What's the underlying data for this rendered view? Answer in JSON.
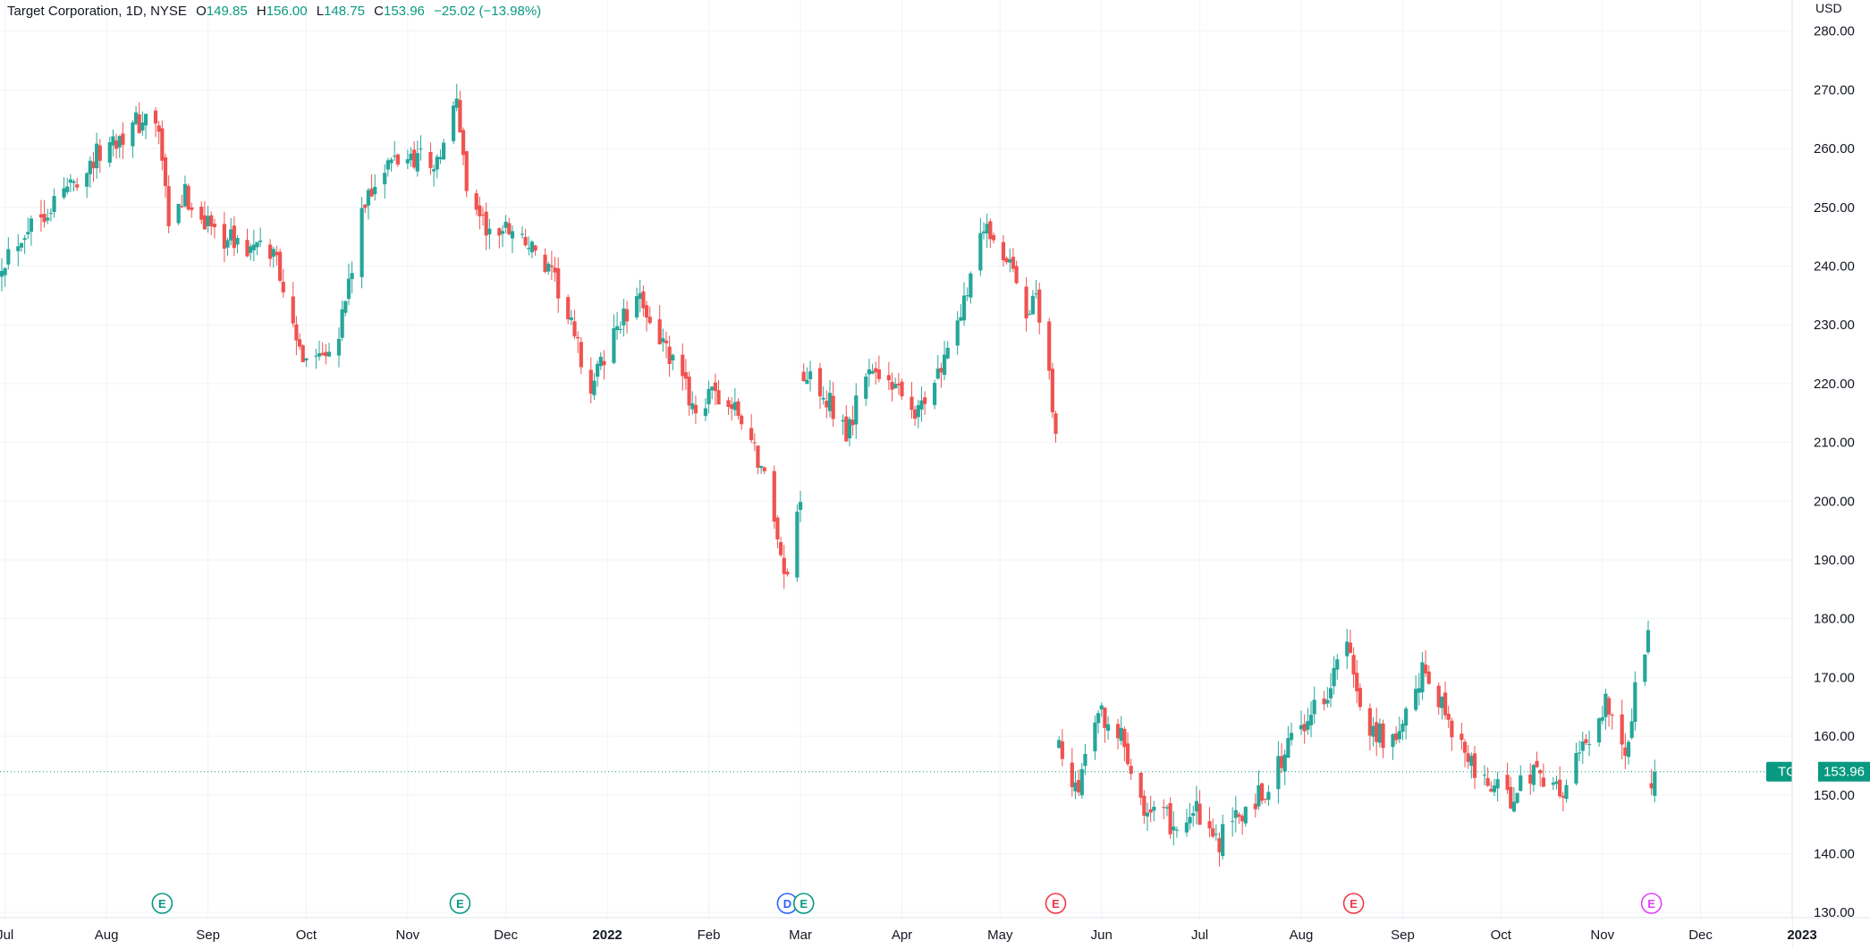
{
  "header": {
    "symbol": "Target Corporation, 1D, NYSE",
    "open_label": "O",
    "open": "149.85",
    "high_label": "H",
    "high": "156.00",
    "low_label": "L",
    "low": "148.75",
    "close_label": "C",
    "close": "153.96",
    "change": "−25.02 (−13.98%)"
  },
  "colors": {
    "up": "#26a69a",
    "down": "#ef5350",
    "grid": "#f0f3fa",
    "text": "#131722",
    "last_price": "#089981"
  },
  "chart_data": {
    "type": "candlestick",
    "symbol": "TGT",
    "interval": "1D",
    "currency_label": "USD",
    "last_price": 153.96,
    "last_price_label": "153.96",
    "ylim": [
      125,
      283
    ],
    "y_ticks": [
      "130.00",
      "140.00",
      "150.00",
      "160.00",
      "170.00",
      "180.00",
      "190.00",
      "200.00",
      "210.00",
      "220.00",
      "230.00",
      "240.00",
      "250.00",
      "260.00",
      "270.00",
      "280.00"
    ],
    "x_ticks": [
      {
        "date": "2021-07-01",
        "label": "Jul"
      },
      {
        "date": "2021-08-01",
        "label": "Aug"
      },
      {
        "date": "2021-09-01",
        "label": "Sep"
      },
      {
        "date": "2021-10-01",
        "label": "Oct"
      },
      {
        "date": "2021-11-01",
        "label": "Nov"
      },
      {
        "date": "2021-12-01",
        "label": "Dec"
      },
      {
        "date": "2022-01-01",
        "label": "2022"
      },
      {
        "date": "2022-02-01",
        "label": "Feb"
      },
      {
        "date": "2022-03-01",
        "label": "Mar"
      },
      {
        "date": "2022-04-01",
        "label": "Apr"
      },
      {
        "date": "2022-05-01",
        "label": "May"
      },
      {
        "date": "2022-06-01",
        "label": "Jun"
      },
      {
        "date": "2022-07-01",
        "label": "Jul"
      },
      {
        "date": "2022-08-01",
        "label": "Aug"
      },
      {
        "date": "2022-09-01",
        "label": "Sep"
      },
      {
        "date": "2022-10-01",
        "label": "Oct"
      },
      {
        "date": "2022-11-01",
        "label": "Nov"
      },
      {
        "date": "2022-12-01",
        "label": "Dec"
      },
      {
        "date": "2023-01-01",
        "label": "2023"
      }
    ],
    "events": [
      {
        "date": "2021-08-18",
        "label": "E",
        "color": "#089981"
      },
      {
        "date": "2021-11-17",
        "label": "E",
        "color": "#089981"
      },
      {
        "date": "2022-02-25",
        "label": "D",
        "color": "#2962ff"
      },
      {
        "date": "2022-03-02",
        "label": "E",
        "color": "#089981"
      },
      {
        "date": "2022-05-18",
        "label": "E",
        "color": "#f23645"
      },
      {
        "date": "2022-08-17",
        "label": "E",
        "color": "#f23645"
      },
      {
        "date": "2022-11-16",
        "label": "E",
        "color": "#e040fb"
      }
    ],
    "path": [
      [
        "2021-06-30",
        241
      ],
      [
        "2021-07-08",
        247
      ],
      [
        "2021-07-16",
        251
      ],
      [
        "2021-07-26",
        257
      ],
      [
        "2021-08-04",
        262
      ],
      [
        "2021-08-13",
        265
      ],
      [
        "2021-08-17",
        263
      ],
      [
        "2021-08-20",
        246
      ],
      [
        "2021-08-25",
        252
      ],
      [
        "2021-09-03",
        246
      ],
      [
        "2021-09-13",
        243
      ],
      [
        "2021-09-22",
        242
      ],
      [
        "2021-09-28",
        226
      ],
      [
        "2021-10-04",
        225
      ],
      [
        "2021-10-11",
        229
      ],
      [
        "2021-10-20",
        253
      ],
      [
        "2021-10-28",
        258
      ],
      [
        "2021-11-05",
        259
      ],
      [
        "2021-11-10",
        257
      ],
      [
        "2021-11-16",
        268
      ],
      [
        "2021-11-19",
        254
      ],
      [
        "2021-11-26",
        245
      ],
      [
        "2021-12-03",
        247
      ],
      [
        "2021-12-10",
        242
      ],
      [
        "2021-12-17",
        236
      ],
      [
        "2021-12-27",
        219
      ],
      [
        "2022-01-04",
        230
      ],
      [
        "2022-01-12",
        234
      ],
      [
        "2022-01-20",
        224
      ],
      [
        "2022-01-28",
        216
      ],
      [
        "2022-02-04",
        218
      ],
      [
        "2022-02-11",
        214
      ],
      [
        "2022-02-17",
        206
      ],
      [
        "2022-02-22",
        195
      ],
      [
        "2022-02-24",
        186
      ],
      [
        "2022-03-01",
        200
      ],
      [
        "2022-03-02",
        222
      ],
      [
        "2022-03-09",
        218
      ],
      [
        "2022-03-15",
        212
      ],
      [
        "2022-03-22",
        223
      ],
      [
        "2022-03-30",
        220
      ],
      [
        "2022-04-06",
        215
      ],
      [
        "2022-04-13",
        223
      ],
      [
        "2022-04-21",
        237
      ],
      [
        "2022-04-27",
        248
      ],
      [
        "2022-05-03",
        241
      ],
      [
        "2022-05-09",
        232
      ],
      [
        "2022-05-12",
        236
      ],
      [
        "2022-05-17",
        216
      ],
      [
        "2022-05-18",
        211
      ],
      [
        "2022-05-19",
        158
      ],
      [
        "2022-05-24",
        150
      ],
      [
        "2022-05-31",
        165
      ],
      [
        "2022-06-08",
        159
      ],
      [
        "2022-06-15",
        147
      ],
      [
        "2022-06-24",
        145
      ],
      [
        "2022-06-30",
        147
      ],
      [
        "2022-07-05",
        141
      ],
      [
        "2022-07-14",
        147
      ],
      [
        "2022-07-22",
        152
      ],
      [
        "2022-08-01",
        162
      ],
      [
        "2022-08-08",
        167
      ],
      [
        "2022-08-15",
        176
      ],
      [
        "2022-08-17",
        169
      ],
      [
        "2022-08-22",
        162
      ],
      [
        "2022-08-30",
        158
      ],
      [
        "2022-09-08",
        172
      ],
      [
        "2022-09-15",
        163
      ],
      [
        "2022-09-23",
        154
      ],
      [
        "2022-10-03",
        149
      ],
      [
        "2022-10-12",
        155
      ],
      [
        "2022-10-19",
        150
      ],
      [
        "2022-10-26",
        158
      ],
      [
        "2022-11-02",
        166
      ],
      [
        "2022-11-09",
        157
      ],
      [
        "2022-11-11",
        170
      ],
      [
        "2022-11-15",
        178
      ],
      [
        "2022-11-16",
        152
      ],
      [
        "2022-11-17",
        154
      ]
    ]
  }
}
